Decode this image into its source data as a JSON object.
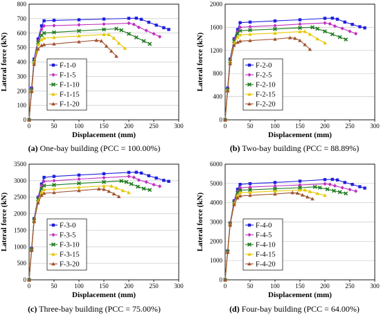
{
  "chart_data": [
    {
      "type": "line",
      "caption": {
        "letter": "(a)",
        "text": " One-bay building (PCC = 100.00%)"
      },
      "xlabel": "Displacement (mm)",
      "ylabel": "Lateral force (kN)",
      "xlim": [
        0,
        300
      ],
      "ylim": [
        0,
        800
      ],
      "xticks": [
        0,
        50,
        100,
        150,
        200,
        250,
        300
      ],
      "yticks": [
        0,
        100,
        200,
        300,
        400,
        500,
        600,
        700,
        800
      ],
      "grid": "horizontal",
      "legend_position": "center-left",
      "series": [
        {
          "name": "F-1-0",
          "color": "#1f1fe0",
          "marker": "square",
          "x": [
            0,
            5,
            10,
            18,
            25,
            30,
            50,
            100,
            150,
            200,
            215,
            225,
            240,
            255,
            270,
            280
          ],
          "y": [
            0,
            220,
            420,
            560,
            650,
            685,
            688,
            692,
            697,
            702,
            703,
            695,
            675,
            655,
            637,
            625
          ]
        },
        {
          "name": "F-1-5",
          "color": "#c030c0",
          "marker": "diamond",
          "x": [
            0,
            5,
            10,
            18,
            25,
            30,
            50,
            100,
            150,
            200,
            210,
            220,
            235,
            250,
            262
          ],
          "y": [
            0,
            210,
            410,
            545,
            625,
            650,
            652,
            657,
            662,
            668,
            660,
            640,
            618,
            595,
            575
          ]
        },
        {
          "name": "F-1-10",
          "color": "#1e7a1e",
          "marker": "x",
          "x": [
            0,
            5,
            10,
            18,
            25,
            30,
            50,
            100,
            150,
            175,
            185,
            200,
            215,
            230,
            242
          ],
          "y": [
            0,
            205,
            400,
            535,
            585,
            600,
            605,
            615,
            625,
            630,
            620,
            595,
            570,
            545,
            525
          ]
        },
        {
          "name": "F-1-15",
          "color": "#e6c800",
          "marker": "triangle",
          "x": [
            0,
            5,
            10,
            18,
            25,
            30,
            50,
            100,
            150,
            160,
            170,
            180,
            192
          ],
          "y": [
            0,
            200,
            395,
            520,
            555,
            565,
            570,
            580,
            590,
            590,
            565,
            530,
            495
          ]
        },
        {
          "name": "F-1-20",
          "color": "#a0522d",
          "marker": "triangle",
          "x": [
            0,
            5,
            10,
            18,
            25,
            30,
            50,
            100,
            135,
            145,
            155,
            165,
            175
          ],
          "y": [
            0,
            195,
            385,
            490,
            515,
            520,
            525,
            540,
            550,
            545,
            510,
            475,
            440
          ]
        }
      ]
    },
    {
      "type": "line",
      "caption": {
        "letter": "(b)",
        "text": " Two-bay building (PCC = 88.89%)"
      },
      "xlabel": "Displacement (mm)",
      "ylabel": "Lateral force (kN)",
      "xlim": [
        0,
        300
      ],
      "ylim": [
        0,
        2000
      ],
      "xticks": [
        0,
        50,
        100,
        150,
        200,
        250,
        300
      ],
      "yticks": [
        0,
        400,
        800,
        1200,
        1600,
        2000
      ],
      "grid": "horizontal",
      "legend_position": "center-left",
      "series": [
        {
          "name": "F-2-0",
          "color": "#1f1fe0",
          "marker": "square",
          "x": [
            0,
            5,
            10,
            18,
            25,
            30,
            50,
            100,
            150,
            200,
            215,
            225,
            240,
            255,
            270,
            280
          ],
          "y": [
            0,
            550,
            1050,
            1400,
            1560,
            1680,
            1690,
            1710,
            1730,
            1755,
            1758,
            1740,
            1690,
            1650,
            1610,
            1590
          ]
        },
        {
          "name": "F-2-5",
          "color": "#c030c0",
          "marker": "diamond",
          "x": [
            0,
            5,
            10,
            18,
            25,
            30,
            50,
            100,
            150,
            200,
            210,
            220,
            235,
            250,
            262
          ],
          "y": [
            0,
            530,
            1030,
            1380,
            1530,
            1600,
            1610,
            1630,
            1655,
            1675,
            1660,
            1620,
            1580,
            1530,
            1490
          ]
        },
        {
          "name": "F-2-10",
          "color": "#1e7a1e",
          "marker": "x",
          "x": [
            0,
            5,
            10,
            18,
            25,
            30,
            50,
            100,
            150,
            175,
            185,
            200,
            215,
            230,
            242
          ],
          "y": [
            0,
            520,
            1010,
            1360,
            1490,
            1540,
            1550,
            1570,
            1590,
            1600,
            1575,
            1530,
            1480,
            1430,
            1390
          ]
        },
        {
          "name": "F-2-15",
          "color": "#e6c800",
          "marker": "triangle",
          "x": [
            0,
            5,
            10,
            18,
            25,
            30,
            50,
            100,
            150,
            160,
            170,
            185,
            200
          ],
          "y": [
            0,
            510,
            990,
            1330,
            1430,
            1470,
            1480,
            1500,
            1525,
            1528,
            1480,
            1400,
            1330
          ]
        },
        {
          "name": "F-2-20",
          "color": "#a0522d",
          "marker": "triangle",
          "x": [
            0,
            5,
            10,
            18,
            25,
            30,
            50,
            100,
            130,
            140,
            150,
            160,
            170
          ],
          "y": [
            0,
            500,
            970,
            1290,
            1340,
            1360,
            1370,
            1395,
            1420,
            1410,
            1370,
            1300,
            1220
          ]
        }
      ]
    },
    {
      "type": "line",
      "caption": {
        "letter": "(c)",
        "text": " Three-bay building (PCC = 75.00%)"
      },
      "xlabel": "Displacement (mm)",
      "ylabel": "Lateral force (kN)",
      "xlim": [
        0,
        300
      ],
      "ylim": [
        0,
        3500
      ],
      "xticks": [
        0,
        50,
        100,
        150,
        200,
        250,
        300
      ],
      "yticks": [
        0,
        500,
        1000,
        1500,
        2000,
        2500,
        3000,
        3500
      ],
      "grid": "horizontal",
      "legend_position": "center-left",
      "series": [
        {
          "name": "F-3-0",
          "color": "#1f1fe0",
          "marker": "square",
          "x": [
            0,
            5,
            10,
            18,
            25,
            30,
            50,
            100,
            150,
            200,
            215,
            225,
            240,
            255,
            270,
            280
          ],
          "y": [
            0,
            950,
            1850,
            2500,
            2900,
            3100,
            3130,
            3170,
            3210,
            3250,
            3255,
            3230,
            3150,
            3080,
            3010,
            2980
          ]
        },
        {
          "name": "F-3-5",
          "color": "#c030c0",
          "marker": "diamond",
          "x": [
            0,
            5,
            10,
            18,
            25,
            30,
            50,
            100,
            150,
            200,
            210,
            220,
            235,
            250,
            262
          ],
          "y": [
            0,
            930,
            1820,
            2470,
            2850,
            2980,
            3000,
            3050,
            3090,
            3130,
            3100,
            3020,
            2960,
            2880,
            2830
          ]
        },
        {
          "name": "F-3-10",
          "color": "#1e7a1e",
          "marker": "x",
          "x": [
            0,
            5,
            10,
            18,
            25,
            30,
            50,
            100,
            150,
            185,
            195,
            205,
            218,
            230,
            242
          ],
          "y": [
            0,
            920,
            1800,
            2430,
            2760,
            2850,
            2870,
            2920,
            2960,
            2990,
            2960,
            2900,
            2820,
            2760,
            2720
          ]
        },
        {
          "name": "F-3-15",
          "color": "#e6c800",
          "marker": "triangle",
          "x": [
            0,
            5,
            10,
            18,
            25,
            30,
            50,
            100,
            150,
            165,
            175,
            188,
            200
          ],
          "y": [
            0,
            900,
            1780,
            2380,
            2650,
            2730,
            2750,
            2800,
            2840,
            2840,
            2780,
            2700,
            2640
          ]
        },
        {
          "name": "F-3-20",
          "color": "#a0522d",
          "marker": "triangle",
          "x": [
            0,
            5,
            10,
            18,
            25,
            30,
            50,
            100,
            140,
            150,
            160,
            170,
            180
          ],
          "y": [
            0,
            890,
            1760,
            2330,
            2560,
            2620,
            2640,
            2700,
            2750,
            2740,
            2680,
            2600,
            2520
          ]
        }
      ]
    },
    {
      "type": "line",
      "caption": {
        "letter": "(d)",
        "text": " Four-bay building (PCC = 64.00%)"
      },
      "xlabel": "Displacement (mm)",
      "ylabel": "Lateral force (kN)",
      "xlim": [
        0,
        300
      ],
      "ylim": [
        0,
        6000
      ],
      "xticks": [
        0,
        50,
        100,
        150,
        200,
        250,
        300
      ],
      "yticks": [
        0,
        1000,
        2000,
        3000,
        4000,
        5000,
        6000
      ],
      "grid": "horizontal",
      "legend_position": "center-left",
      "series": [
        {
          "name": "F-4-0",
          "color": "#1f1fe0",
          "marker": "square",
          "x": [
            0,
            5,
            10,
            18,
            25,
            30,
            50,
            100,
            150,
            200,
            215,
            225,
            240,
            255,
            270,
            280
          ],
          "y": [
            0,
            1500,
            2950,
            4100,
            4700,
            4950,
            4990,
            5050,
            5120,
            5200,
            5210,
            5180,
            5050,
            4950,
            4830,
            4760
          ]
        },
        {
          "name": "F-4-5",
          "color": "#c030c0",
          "marker": "diamond",
          "x": [
            0,
            5,
            10,
            18,
            25,
            30,
            50,
            100,
            150,
            200,
            210,
            220,
            235,
            250,
            262
          ],
          "y": [
            0,
            1480,
            2920,
            4050,
            4600,
            4780,
            4810,
            4870,
            4920,
            4980,
            4950,
            4880,
            4780,
            4680,
            4600
          ]
        },
        {
          "name": "F-4-10",
          "color": "#1e7a1e",
          "marker": "x",
          "x": [
            0,
            5,
            10,
            18,
            25,
            30,
            50,
            100,
            150,
            180,
            190,
            205,
            218,
            230,
            242
          ],
          "y": [
            0,
            1460,
            2900,
            4000,
            4520,
            4650,
            4670,
            4720,
            4780,
            4820,
            4780,
            4700,
            4620,
            4550,
            4480
          ]
        },
        {
          "name": "F-4-15",
          "color": "#e6c800",
          "marker": "triangle",
          "x": [
            0,
            5,
            10,
            18,
            25,
            30,
            50,
            100,
            150,
            160,
            170,
            185,
            200
          ],
          "y": [
            0,
            1440,
            2870,
            3950,
            4400,
            4520,
            4540,
            4600,
            4660,
            4660,
            4580,
            4480,
            4380
          ]
        },
        {
          "name": "F-4-20",
          "color": "#a0522d",
          "marker": "triangle",
          "x": [
            0,
            5,
            10,
            18,
            25,
            30,
            50,
            100,
            135,
            145,
            155,
            165,
            175
          ],
          "y": [
            0,
            1420,
            2830,
            3900,
            4250,
            4350,
            4380,
            4450,
            4520,
            4500,
            4400,
            4300,
            4200
          ]
        }
      ]
    }
  ]
}
